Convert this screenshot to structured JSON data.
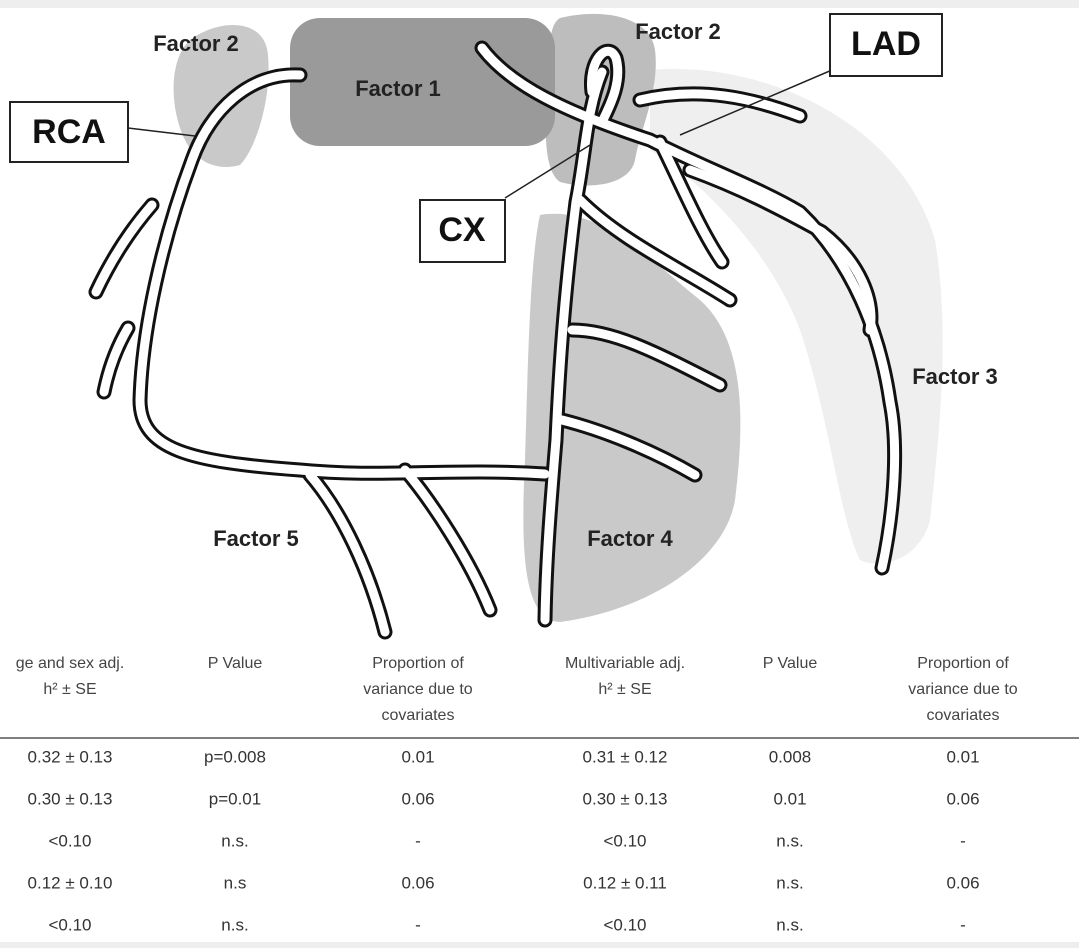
{
  "diagram": {
    "regions": {
      "factor_1": "Factor 1",
      "factor_2_left": "Factor 2",
      "factor_2_right": "Factor 2",
      "factor_3": "Factor 3",
      "factor_4": "Factor 4",
      "factor_5": "Factor 5"
    },
    "vessels": {
      "rca": "RCA",
      "lad": "LAD",
      "cx": "CX"
    }
  },
  "table": {
    "header": [
      [
        "ge and sex adj.",
        "h² ± SE"
      ],
      [
        "P Value"
      ],
      [
        "Proportion of",
        "variance due to",
        "covariates"
      ],
      [
        "Multivariable adj.",
        "h² ± SE"
      ],
      [
        "P Value"
      ],
      [
        "Proportion of",
        "variance due to",
        "covariates"
      ]
    ],
    "rows": [
      [
        "0.32 ± 0.13",
        "p=0.008",
        "0.01",
        "0.31 ± 0.12",
        "0.008",
        "0.01"
      ],
      [
        "0.30 ± 0.13",
        "p=0.01",
        "0.06",
        "0.30 ± 0.13",
        "0.01",
        "0.06"
      ],
      [
        "<0.10",
        "n.s.",
        "-",
        "<0.10",
        "n.s.",
        "-"
      ],
      [
        "0.12 ± 0.10",
        "n.s",
        "0.06",
        "0.12 ± 0.11",
        "n.s.",
        "0.06"
      ],
      [
        "<0.10",
        "n.s.",
        "-",
        "<0.10",
        "n.s.",
        "-"
      ]
    ]
  }
}
